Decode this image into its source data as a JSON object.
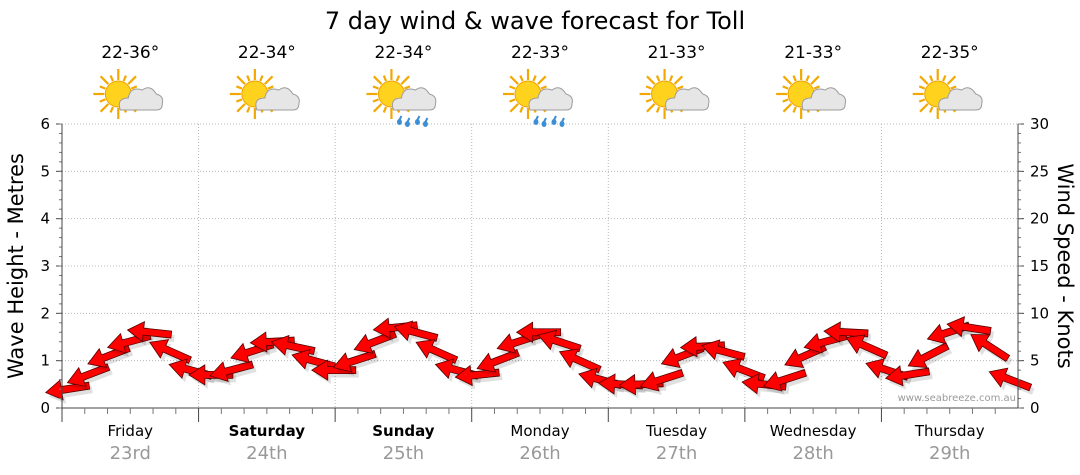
{
  "chart_data": {
    "type": "line",
    "title": "7 day wind & wave forecast for Toll",
    "ylabel": "Wave Height - Metres",
    "y2label": "Wind Speed - Knots",
    "ylim": [
      0,
      6
    ],
    "y2lim": [
      0,
      30
    ],
    "yticks": [
      "0",
      "1",
      "2",
      "3",
      "4",
      "5",
      "6"
    ],
    "y2ticks": [
      "0",
      "5",
      "10",
      "15",
      "20",
      "25",
      "30"
    ],
    "days": [
      {
        "name": "Friday",
        "date": "23rd",
        "temp": "22-36°",
        "icon": "partly-cloudy-icon",
        "bold": false
      },
      {
        "name": "Saturday",
        "date": "24th",
        "temp": "22-34°",
        "icon": "partly-cloudy-icon",
        "bold": true
      },
      {
        "name": "Sunday",
        "date": "25th",
        "temp": "22-34°",
        "icon": "showers-icon",
        "bold": true
      },
      {
        "name": "Monday",
        "date": "26th",
        "temp": "22-33°",
        "icon": "showers-icon",
        "bold": false
      },
      {
        "name": "Tuesday",
        "date": "27th",
        "temp": "21-33°",
        "icon": "partly-cloudy-icon",
        "bold": false
      },
      {
        "name": "Wednesday",
        "date": "28th",
        "temp": "21-33°",
        "icon": "partly-cloudy-icon",
        "bold": false
      },
      {
        "name": "Thursday",
        "date": "29th",
        "temp": "22-35°",
        "icon": "partly-cloudy-icon",
        "bold": false
      }
    ],
    "series": [
      {
        "type": "wind-arrows",
        "unit": "knots",
        "x_days": [
          0.0,
          0.15,
          0.3,
          0.45,
          0.6,
          0.75,
          0.9,
          1.05,
          1.2,
          1.35,
          1.5,
          1.65,
          1.8,
          1.95,
          2.1,
          2.25,
          2.4,
          2.55,
          2.7,
          2.85,
          3.0,
          3.15,
          3.3,
          3.45,
          3.6,
          3.75,
          3.9,
          4.05,
          4.2,
          4.35,
          4.5,
          4.65,
          4.8,
          4.95,
          5.1,
          5.25,
          5.4,
          5.55,
          5.7,
          5.85,
          6.0,
          6.15,
          6.3,
          6.45,
          6.6,
          6.75,
          6.9
        ],
        "values": [
          2.0,
          3.5,
          5.5,
          7.0,
          8.0,
          6.0,
          4.0,
          3.5,
          4.0,
          6.0,
          7.0,
          6.5,
          5.0,
          4.0,
          5.0,
          7.0,
          8.5,
          8.0,
          6.0,
          4.0,
          3.5,
          5.0,
          7.0,
          8.0,
          7.0,
          5.0,
          3.0,
          2.5,
          2.5,
          3.0,
          5.5,
          6.5,
          6.0,
          4.0,
          2.5,
          3.0,
          5.5,
          7.0,
          8.0,
          6.5,
          4.0,
          3.5,
          5.5,
          8.0,
          8.5,
          6.5,
          3.0
        ],
        "color": "#ff0000"
      }
    ],
    "credit": "www.seabreeze.com.au",
    "grid": true
  }
}
